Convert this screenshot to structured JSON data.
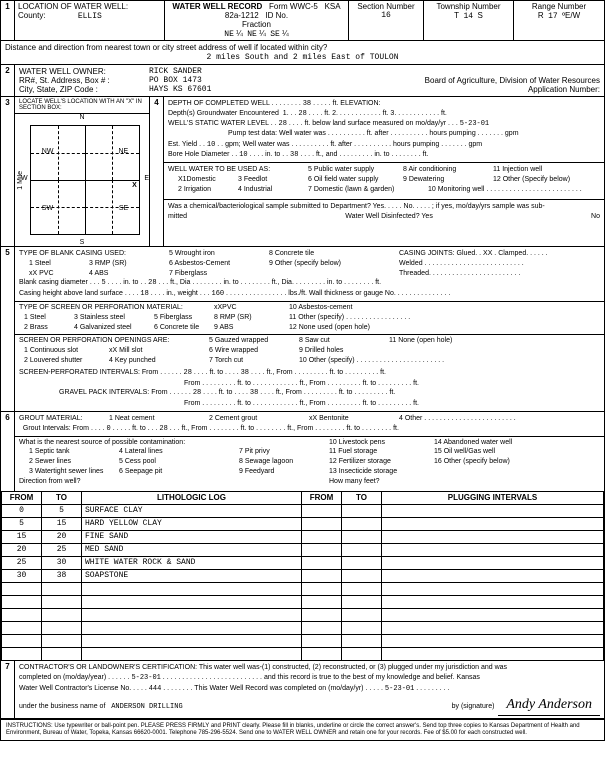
{
  "form": {
    "title": "WATER WELL RECORD",
    "form_no": "Form WWC-5",
    "ksa": "KSA 82a-1212",
    "id_label": "ID No."
  },
  "sec1": {
    "num": "1",
    "title": "LOCATION OF WATER WELL:",
    "county_label": "County:",
    "county": "ELLIS",
    "fraction_label": "Fraction",
    "frac1": "NE",
    "q1": "¼",
    "frac2": "NE",
    "q2": "¼",
    "frac3": "SE",
    "q3": "¼",
    "section_label": "Section Number",
    "section": "16",
    "township_label": "Township Number",
    "township_t": "T",
    "township": "14",
    "township_s": "S",
    "range_label": "Range Number",
    "range_r": "R",
    "range": "17",
    "range_ew": "ºE/W",
    "dist_label": "Distance and direction from nearest town or city street address of well if located within city?",
    "dist": "2 miles South and 2 miles East of TOULON"
  },
  "sec2": {
    "num": "2",
    "title": "WATER WELL OWNER:",
    "name": "RICK SANDER",
    "addr_label": "RR#, St. Address, Box #   :",
    "addr": "PO BOX 1473",
    "city_label": "City, State, ZIP Code        :",
    "city": "HAYS KS  67601",
    "board": "Board of Agriculture, Division of Water Resources",
    "app_label": "Application Number:"
  },
  "sec3": {
    "num": "3",
    "title": "LOCATE WELL'S LOCATION WITH AN \"X\" IN SECTION BOX:",
    "n": "N",
    "s": "S",
    "e": "E",
    "w": "W",
    "nw": "NW",
    "ne": "NE",
    "sw": "SW",
    "se": "SE",
    "mile": "1 Mile"
  },
  "sec4": {
    "num": "4",
    "depth_label": "DEPTH OF COMPLETED WELL",
    "depth": "38",
    "elev_label": "ft. ELEVATION:",
    "gw_label": "Depth(s) Groundwater Encountered",
    "gw1": "1.",
    "gw1v": "28",
    "gw2": "ft. 2.",
    "gw3": "ft. 3.",
    "gwft": "ft.",
    "static_label": "WELL'S STATIC WATER LEVEL",
    "static": "28",
    "static_suffix": "ft. below land surface measured on mo/day/yr",
    "static_date": "5-23-01",
    "pump_label": "Pump test data:  Well water was",
    "pump_after": "ft. after",
    "pump_hours": "hours pumping",
    "pump_gpm": "gpm",
    "yield_label": "Est. Yield",
    "yield": "10",
    "yield_unit": "gpm; Well water was",
    "bore_label": "Bore Hole Diameter",
    "bore": "10",
    "bore_to": "in. to",
    "bore_to_v": "38",
    "bore_and": "ft., and",
    "bore_into": "in. to",
    "bore_ft": "ft.",
    "use_label": "WELL WATER TO BE USED AS:",
    "u1": "X1Domestic",
    "u3": "3 Feedlot",
    "u5": "5 Public water supply",
    "u8": "8 Air conditioning",
    "u11": "11 Injection well",
    "u2": "2 Irrigation",
    "u4": "4 Industrial",
    "u6": "6 Oil field water supply",
    "u9": "9 Dewatering",
    "u12": "12 Other (Specify below)",
    "u7": "7 Domestic (lawn & garden)",
    "u10": "10 Monitoring well",
    "chem_label": "Was a chemical/bacteriological sample submitted to Department? Yes. . . . . No. . . . . ; if yes, mo/day/yrs sample was sub-",
    "mitted": "mitted",
    "disinfect": "Water Well Disinfected?  Yes",
    "no": "No"
  },
  "sec5": {
    "num": "5",
    "title": "TYPE OF BLANK CASING USED:",
    "c1": "1 Steel",
    "c3": "3 RMP (SR)",
    "c5": "5 Wrought iron",
    "c8": "8 Concrete tile",
    "joints": "CASING JOINTS: Glued. . XX . Clamped. . . . . .",
    "c2": "xX PVC",
    "c4": "4 ABS",
    "c6": "6 Asbestos-Cement",
    "c9": "9 Other (specify below)",
    "welded": "Welded . . . . . . . . . . . . . . . . . . . . . . . . . .",
    "c7": "7 Fiberglass",
    "threaded": "Threaded. . . . . . . . . . . . . . . . . . . . . . . .",
    "bcd_label": "Blank casing diameter",
    "bcd": "5",
    "bcd_into": "in. to",
    "bcd_to": "28",
    "bcd_ftdia": "ft., Dia",
    "bcd_ftto": "in. to",
    "bcd_ft": "ft., Dia.",
    "bcd_in": "in. to",
    "bcd_ftend": "ft.",
    "chal_label": "Casing height above land surface",
    "chal": "18",
    "chal_wt": "in., weight",
    "chal_wtv": "160",
    "chal_lbs": "lbs./ft. Wall thickness or gauge No.",
    "screen_title": "TYPE OF SCREEN OR PERFORATION MATERIAL:",
    "s1": "1 Steel",
    "s3": "3 Stainless steel",
    "s5": "5 Fiberglass",
    "s6p": "xXPVC",
    "s8": "8 RMP (SR)",
    "s10": "10 Asbestos-cement",
    "s11": "11 Other (specify)",
    "s2": "2 Brass",
    "s4": "4 Galvanized steel",
    "s6": "6 Concrete tile",
    "s9": "9 ABS",
    "s12": "12 None used (open hole)",
    "perf_title": "SCREEN OR PERFORATION OPENINGS ARE:",
    "p1": "1 Continuous slot",
    "p3": "xX Mill slot",
    "p5": "5 Gauzed wrapped",
    "p8": "8 Saw cut",
    "p11": "11 None (open hole)",
    "p2": "2 Louvered shutter",
    "p4": "4 Key punched",
    "p6": "6 Wire wrapped",
    "p9": "9 Drilled holes",
    "p7": "7 Torch cut",
    "p10": "10 Other (specify)",
    "spi_label": "SCREEN-PERFORATED INTERVALS:  From",
    "spi_from": "28",
    "spi_to": "ft. to",
    "spi_tov": "38",
    "spi_ft": "ft., From",
    "spi_ftto": "ft. to",
    "spi_ftend": "ft.",
    "from_label": "From",
    "gpi_label": "GRAVEL PACK INTERVALS:  From",
    "gpi_from": "28",
    "gpi_tov": "38"
  },
  "sec6": {
    "num": "6",
    "title": "GROUT MATERIAL:",
    "g1": "1 Neat cement",
    "g2": "2 Cement grout",
    "g3": "xX Bentonite",
    "g4": "4 Other",
    "gi_label": "Grout Intervals:   From",
    "gi_from": "0",
    "gi_to": "ft. to",
    "gi_tov": "28",
    "gi_ft": "ft., From",
    "gi_ftto": "ft. to",
    "gi_ftend": "ft., From",
    "gi_last": "ft. to",
    "gi_lastft": "ft.",
    "contam_label": "What is the nearest source of possible contamination:",
    "n1": "1 Septic tank",
    "n4": "4 Lateral lines",
    "n7": "7 Pit privy",
    "n10": "10 Livestock pens",
    "n14": "14 Abandoned water well",
    "n2": "2 Sewer lines",
    "n5": "5 Cess pool",
    "n8": "8 Sewage lagoon",
    "n11": "11 Fuel storage",
    "n15": "15 Oil well/Gas well",
    "n3": "3 Watertight sewer lines",
    "n6": "6 Seepage pit",
    "n9": "9 Feedyard",
    "n12": "12 Fertilizer storage",
    "n16": "16 Other (specify below)",
    "n13": "13 Insecticide storage",
    "dir_label": "Direction from well?",
    "feet_label": "How many feet?"
  },
  "log": {
    "from": "FROM",
    "to": "TO",
    "lith": "LITHOLOGIC LOG",
    "plug": "PLUGGING INTERVALS",
    "rows": [
      {
        "f": "0",
        "t": "5",
        "d": "SURFACE CLAY"
      },
      {
        "f": "5",
        "t": "15",
        "d": "HARD YELLOW CLAY"
      },
      {
        "f": "15",
        "t": "20",
        "d": "FINE SAND"
      },
      {
        "f": "20",
        "t": "25",
        "d": "MED SAND"
      },
      {
        "f": "25",
        "t": "30",
        "d": "WHITE WATER ROCK & SAND"
      },
      {
        "f": "30",
        "t": "38",
        "d": "SOAPSTONE"
      }
    ]
  },
  "sec7": {
    "num": "7",
    "cert": "CONTRACTOR'S OR LANDOWNER'S CERTIFICATION: This water well was-(1) constructed, (2) reconstructed, or (3) plugged under my jurisdiction and was",
    "comp_label": "completed on (mo/day/year)",
    "comp_date": "5-23-01",
    "comp_suffix": "and this record is true to the best of my knowledge and belief. Kansas",
    "lic_label": "Water Well Contractor's License No.",
    "lic": "444",
    "lic_suffix": ". This Water Well Record was completed on (mo/day/yr)",
    "lic_date": "5-23-01",
    "bus_label": "under the business name of",
    "bus": "ANDERSON DRILLING",
    "by": "by  (signature)",
    "sig": "Andy Anderson"
  },
  "instr": "INSTRUCTIONS: Use typewriter or ball-point pen. PLEASE PRESS FIRMLY and PRINT clearly. Please fill in blanks, underline or circle the correct answer's. Send top three copies to Kansas Department of Health and Environment, Bureau of Water, Topeka, Kansas 66620-0001. Telephone 785-296-5524. Send one to WATER WELL OWNER and retain one for your records. Fee of $5.00 for each constructed well."
}
